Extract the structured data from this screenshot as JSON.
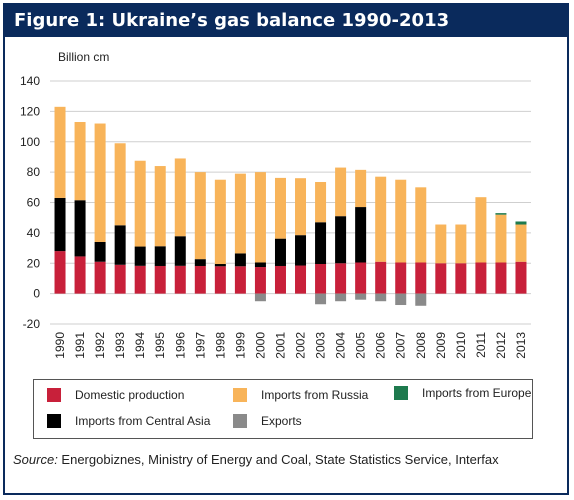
{
  "title": "Figure 1: Ukraine’s gas balance 1990-2013",
  "source_label": "Source:",
  "source_text": " Energobiznes, Ministry of Energy and Coal, State Statistics Service, Interfax",
  "chart_data": {
    "type": "bar",
    "stacked": true,
    "ylabel": "Billion cm",
    "ylim": [
      -20,
      140
    ],
    "yticks": [
      -20,
      0,
      20,
      40,
      60,
      80,
      100,
      120,
      140
    ],
    "grid": true,
    "legend_position": "bottom",
    "categories": [
      "1990",
      "1991",
      "1992",
      "1993",
      "1994",
      "1995",
      "1996",
      "1997",
      "1998",
      "1999",
      "2000",
      "2001",
      "2002",
      "2003",
      "2004",
      "2005",
      "2006",
      "2007",
      "2008",
      "2009",
      "2010",
      "2011",
      "2012",
      "2013"
    ],
    "series": [
      {
        "name": "Domestic production",
        "color": "#c8203a",
        "values": [
          28,
          24.5,
          21,
          19,
          18.3,
          18.2,
          18.3,
          18.2,
          18,
          18,
          17.5,
          18.2,
          18.5,
          19.5,
          20,
          20.5,
          21,
          20.5,
          20.5,
          20,
          20,
          20.5,
          20.5,
          21
        ]
      },
      {
        "name": "Imports from Central Asia",
        "color": "#000000",
        "values": [
          35,
          37,
          13,
          26,
          12.7,
          13,
          19.5,
          4.5,
          1.5,
          8.5,
          3,
          18,
          20,
          27.5,
          31,
          36.5,
          0,
          0,
          0,
          0,
          0,
          0,
          0,
          0
        ]
      },
      {
        "name": "Imports from Russia",
        "color": "#f8b45a",
        "values": [
          60,
          51.5,
          78,
          54,
          56.5,
          52.8,
          51.2,
          57.3,
          55.5,
          52.5,
          59.5,
          40,
          37.5,
          26.5,
          32,
          24.5,
          56,
          54.5,
          49.5,
          25.5,
          25.5,
          43,
          31.5,
          24.5
        ]
      },
      {
        "name": "Imports from Europe",
        "color": "#1e7a4e",
        "values": [
          0,
          0,
          0,
          0,
          0,
          0,
          0,
          0,
          0,
          0,
          0,
          0,
          0,
          0,
          0,
          0,
          0,
          0,
          0,
          0,
          0,
          0,
          1,
          2
        ]
      },
      {
        "name": "Exports",
        "color": "#8a8a8a",
        "values": [
          0,
          0,
          0,
          0,
          0,
          0,
          0,
          0,
          0,
          0,
          -5,
          0,
          0,
          -7,
          -5,
          -4,
          -5,
          -7.5,
          -8,
          0,
          0,
          0,
          0,
          0
        ]
      }
    ]
  }
}
